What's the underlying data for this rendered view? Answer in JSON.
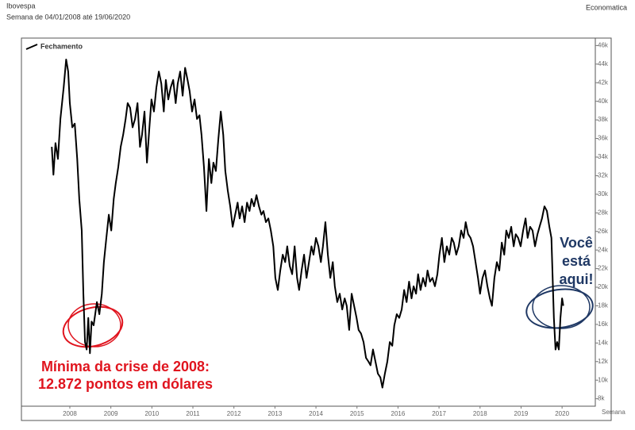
{
  "chart_data": {
    "type": "line",
    "title": "Ibovespa",
    "subtitle": "Semana de 04/01/2008 até 19/06/2020",
    "source": "Economatica",
    "xlabel": "Semana",
    "xlim": [
      2007.32,
      2021.31
    ],
    "xticks": [
      {
        "value": 2008.5,
        "label": "2008"
      },
      {
        "value": 2009.5,
        "label": "2009"
      },
      {
        "value": 2010.5,
        "label": "2010"
      },
      {
        "value": 2011.5,
        "label": "2011"
      },
      {
        "value": 2012.5,
        "label": "2012"
      },
      {
        "value": 2013.5,
        "label": "2013"
      },
      {
        "value": 2014.5,
        "label": "2014"
      },
      {
        "value": 2015.5,
        "label": "2015"
      },
      {
        "value": 2016.5,
        "label": "2016"
      },
      {
        "value": 2017.5,
        "label": "2017"
      },
      {
        "value": 2018.5,
        "label": "2018"
      },
      {
        "value": 2019.5,
        "label": "2019"
      },
      {
        "value": 2020.5,
        "label": "2020"
      }
    ],
    "ylim": [
      7200,
      46800
    ],
    "yticks": [
      {
        "value": 8000,
        "label": "8k"
      },
      {
        "value": 10000,
        "label": "10k"
      },
      {
        "value": 12000,
        "label": "12k"
      },
      {
        "value": 14000,
        "label": "14k"
      },
      {
        "value": 16000,
        "label": "16k"
      },
      {
        "value": 18000,
        "label": "18k"
      },
      {
        "value": 20000,
        "label": "20k"
      },
      {
        "value": 22000,
        "label": "22k"
      },
      {
        "value": 24000,
        "label": "24k"
      },
      {
        "value": 26000,
        "label": "26k"
      },
      {
        "value": 28000,
        "label": "28k"
      },
      {
        "value": 30000,
        "label": "30k"
      },
      {
        "value": 32000,
        "label": "32k"
      },
      {
        "value": 34000,
        "label": "34k"
      },
      {
        "value": 36000,
        "label": "36k"
      },
      {
        "value": 38000,
        "label": "38k"
      },
      {
        "value": 40000,
        "label": "40k"
      },
      {
        "value": 42000,
        "label": "42k"
      },
      {
        "value": 44000,
        "label": "44k"
      },
      {
        "value": 46000,
        "label": "46k"
      }
    ],
    "x": [
      2008.06,
      2008.1,
      2008.15,
      2008.21,
      2008.27,
      2008.35,
      2008.41,
      2008.46,
      2008.5,
      2008.56,
      2008.62,
      2008.68,
      2008.73,
      2008.79,
      2008.83,
      2008.87,
      2008.91,
      2008.95,
      2008.99,
      2009.03,
      2009.08,
      2009.16,
      2009.22,
      2009.28,
      2009.33,
      2009.39,
      2009.45,
      2009.51,
      2009.57,
      2009.62,
      2009.68,
      2009.74,
      2009.8,
      2009.86,
      2009.91,
      2009.97,
      2010.03,
      2010.09,
      2010.15,
      2010.21,
      2010.26,
      2010.32,
      2010.38,
      2010.44,
      2010.49,
      2010.55,
      2010.61,
      2010.67,
      2010.73,
      2010.79,
      2010.84,
      2010.9,
      2010.96,
      2011.02,
      2011.08,
      2011.13,
      2011.19,
      2011.25,
      2011.31,
      2011.37,
      2011.42,
      2011.48,
      2011.54,
      2011.6,
      2011.66,
      2011.71,
      2011.77,
      2011.83,
      2011.89,
      2011.95,
      2012.0,
      2012.06,
      2012.12,
      2012.18,
      2012.24,
      2012.29,
      2012.35,
      2012.41,
      2012.47,
      2012.53,
      2012.59,
      2012.64,
      2012.7,
      2012.76,
      2012.82,
      2012.88,
      2012.93,
      2012.99,
      2013.05,
      2013.11,
      2013.17,
      2013.22,
      2013.28,
      2013.34,
      2013.4,
      2013.46,
      2013.51,
      2013.57,
      2013.63,
      2013.69,
      2013.75,
      2013.8,
      2013.86,
      2013.92,
      2013.98,
      2014.04,
      2014.09,
      2014.15,
      2014.21,
      2014.27,
      2014.33,
      2014.39,
      2014.44,
      2014.5,
      2014.56,
      2014.62,
      2014.67,
      2014.73,
      2014.79,
      2014.85,
      2014.91,
      2014.96,
      2015.02,
      2015.08,
      2015.14,
      2015.2,
      2015.25,
      2015.31,
      2015.37,
      2015.43,
      2015.49,
      2015.54,
      2015.6,
      2015.66,
      2015.72,
      2015.78,
      2015.83,
      2015.89,
      2015.95,
      2016.01,
      2016.07,
      2016.12,
      2016.18,
      2016.24,
      2016.3,
      2016.36,
      2016.41,
      2016.47,
      2016.53,
      2016.59,
      2016.65,
      2016.71,
      2016.77,
      2016.83,
      2016.88,
      2016.94,
      2016.99,
      2017.05,
      2017.11,
      2017.17,
      2017.22,
      2017.28,
      2017.34,
      2017.4,
      2017.46,
      2017.51,
      2017.57,
      2017.63,
      2017.69,
      2017.75,
      2017.81,
      2017.86,
      2017.92,
      2017.98,
      2018.04,
      2018.1,
      2018.15,
      2018.21,
      2018.27,
      2018.33,
      2018.39,
      2018.45,
      2018.5,
      2018.56,
      2018.62,
      2018.68,
      2018.74,
      2018.79,
      2018.85,
      2018.91,
      2018.97,
      2019.03,
      2019.09,
      2019.14,
      2019.2,
      2019.26,
      2019.32,
      2019.37,
      2019.43,
      2019.49,
      2019.55,
      2019.61,
      2019.66,
      2019.72,
      2019.78,
      2019.84,
      2019.9,
      2019.95,
      2020.01,
      2020.07,
      2020.13,
      2020.19,
      2020.24,
      2020.3,
      2020.34,
      2020.38,
      2020.42,
      2020.46,
      2020.5,
      2020.53
    ],
    "series": [
      {
        "name": "Fechamento",
        "color": "#000000",
        "values": [
          35100,
          32100,
          35500,
          33800,
          38100,
          41500,
          44500,
          43200,
          39800,
          37200,
          37600,
          33800,
          29500,
          26100,
          19300,
          14100,
          13300,
          16700,
          12900,
          16300,
          15900,
          18400,
          17100,
          19300,
          22700,
          25300,
          27800,
          26100,
          29500,
          31200,
          32900,
          35100,
          36400,
          38100,
          39800,
          39300,
          37200,
          38100,
          39800,
          35100,
          36400,
          38900,
          33400,
          37200,
          40200,
          38900,
          41500,
          43200,
          41900,
          38900,
          42300,
          40200,
          41500,
          42300,
          39800,
          41900,
          43200,
          40600,
          43600,
          42300,
          41100,
          38900,
          40200,
          38100,
          38500,
          36400,
          32900,
          28200,
          33800,
          31200,
          33400,
          32500,
          35900,
          38900,
          36400,
          32500,
          30400,
          28700,
          26500,
          27800,
          29100,
          27400,
          28700,
          27000,
          29100,
          28200,
          29500,
          28700,
          29900,
          28700,
          27800,
          28200,
          27000,
          27400,
          26100,
          24400,
          21000,
          19700,
          21800,
          23500,
          22700,
          24400,
          22300,
          21400,
          24400,
          21000,
          19700,
          21800,
          23500,
          21000,
          22700,
          24400,
          23500,
          25300,
          24400,
          22700,
          24400,
          27000,
          23500,
          21000,
          22700,
          20100,
          18400,
          19300,
          17600,
          18800,
          18000,
          15400,
          19300,
          18000,
          16700,
          15400,
          15000,
          14100,
          12400,
          12000,
          11600,
          13300,
          12000,
          10700,
          10300,
          9200,
          10700,
          12000,
          14100,
          13700,
          15900,
          17100,
          16700,
          17600,
          19700,
          18400,
          20600,
          18800,
          20100,
          19300,
          21400,
          19700,
          21000,
          20100,
          21800,
          20600,
          21000,
          20100,
          21400,
          23500,
          25300,
          22700,
          24400,
          23500,
          25300,
          24800,
          23500,
          24400,
          26100,
          25300,
          27000,
          25700,
          25300,
          24400,
          22700,
          21000,
          19300,
          21000,
          21800,
          20100,
          18800,
          18000,
          21000,
          22700,
          21800,
          24800,
          23500,
          26100,
          25300,
          26500,
          24400,
          25700,
          25300,
          24400,
          26100,
          27400,
          25300,
          26500,
          26100,
          24400,
          25700,
          26500,
          27400,
          28700,
          28200,
          26500,
          25300,
          16700,
          13300,
          14100,
          13300,
          16700,
          18800,
          18000
        ]
      }
    ],
    "annotations": [
      {
        "text": [
          "Mínima da crise de 2008:",
          "12.872 pontos em dólares"
        ],
        "color": "#e0141e"
      },
      {
        "text": [
          "Você",
          "está",
          "aqui!"
        ],
        "color": "#1f3864"
      }
    ]
  }
}
